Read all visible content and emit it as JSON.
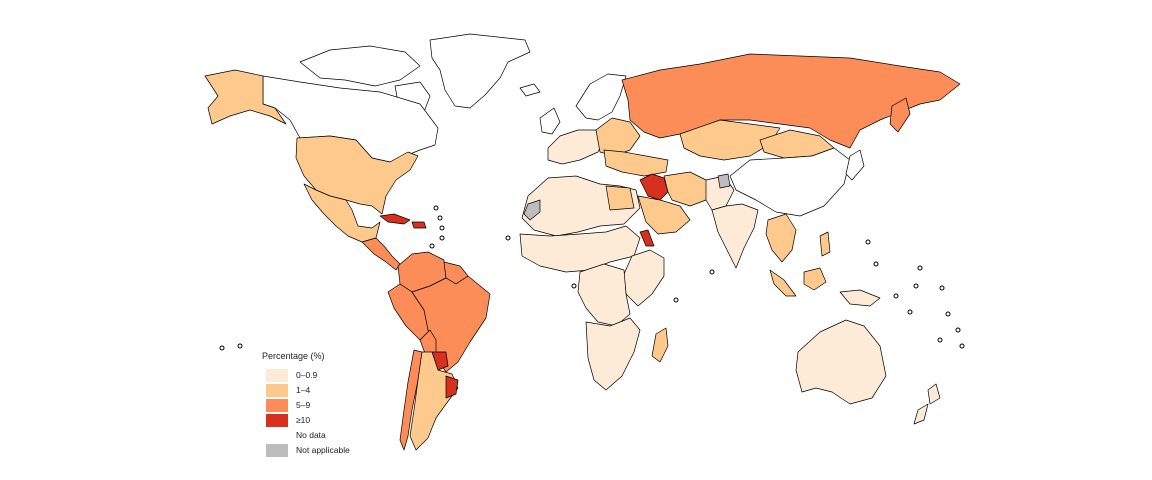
{
  "legend": {
    "title": "Percentage (%)",
    "items": [
      {
        "label": "0–0.9",
        "color": "#fdebd8"
      },
      {
        "label": "1–4",
        "color": "#fdc98c"
      },
      {
        "label": "5–9",
        "color": "#fc8d59"
      },
      {
        "label": "≥10",
        "color": "#d7301f"
      },
      {
        "label": "No data",
        "color": "#ffffff"
      },
      {
        "label": "Not applicable",
        "color": "#bdbdbd"
      }
    ]
  },
  "map": {
    "colors": {
      "class_0": "#fdebd8",
      "class_1": "#fdc98c",
      "class_2": "#fc8d59",
      "class_3": "#d7301f",
      "no_data": "#ffffff",
      "not_applicable": "#bdbdbd"
    }
  }
}
